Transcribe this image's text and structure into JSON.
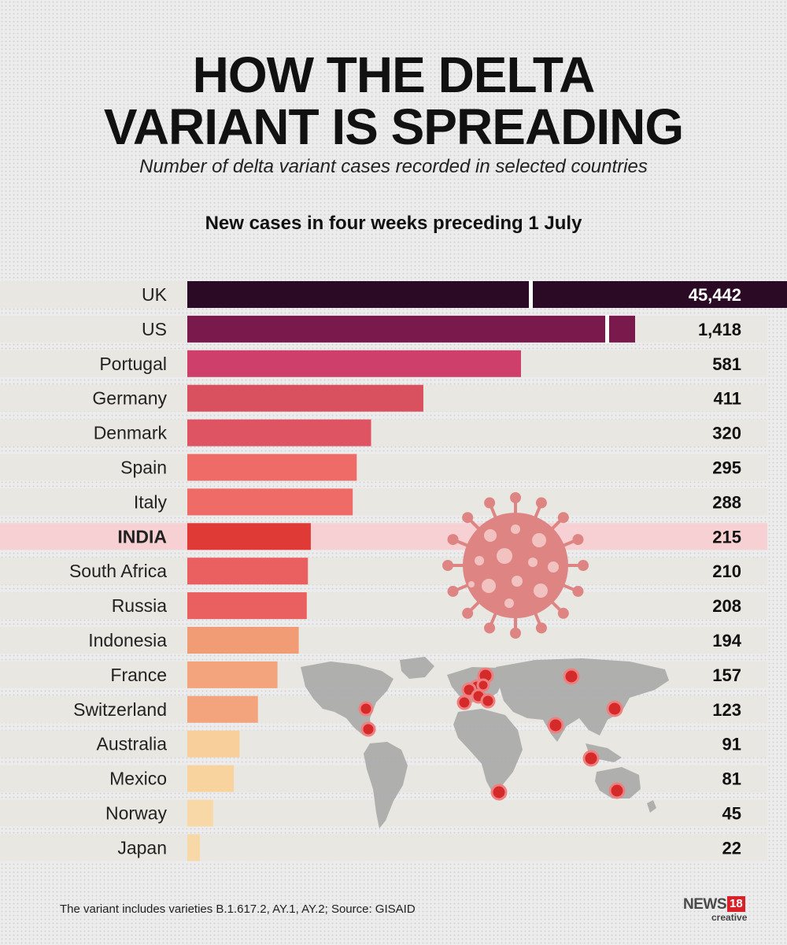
{
  "header": {
    "title_line1": "HOW THE DELTA",
    "title_line2": "VARIANT IS SPREADING",
    "subtitle": "Number of delta variant cases recorded in selected countries",
    "chart_heading": "New cases in four weeks preceding 1 July"
  },
  "footer": {
    "note": "The variant includes varieties B.1.617.2, AY.1, AY.2;  Source: GISAID",
    "logo_news": "NEWS",
    "logo_num": "18",
    "logo_sub": "creative"
  },
  "chart_data": {
    "type": "bar",
    "orientation": "horizontal",
    "title": "New cases in four weeks preceding 1 July",
    "categories": [
      "UK",
      "US",
      "Portugal",
      "Germany",
      "Denmark",
      "Spain",
      "Italy",
      "INDIA",
      "South Africa",
      "Russia",
      "Indonesia",
      "France",
      "Switzerland",
      "Australia",
      "Mexico",
      "Norway",
      "Japan"
    ],
    "values": [
      45442,
      1418,
      581,
      411,
      320,
      295,
      288,
      215,
      210,
      208,
      194,
      157,
      123,
      91,
      81,
      45,
      22
    ],
    "value_labels": [
      "45,442",
      "1,418",
      "581",
      "411",
      "320",
      "295",
      "288",
      "215",
      "210",
      "208",
      "194",
      "157",
      "123",
      "91",
      "81",
      "45",
      "22"
    ],
    "highlight": "INDIA",
    "axis_breaks": [
      "UK",
      "US"
    ],
    "bar_colors": [
      "#2b0a25",
      "#7a1a4c",
      "#cf3f6c",
      "#d9505f",
      "#df5462",
      "#ee6b68",
      "#ee6b68",
      "#e03a36",
      "#ea5f5f",
      "#ea5f5f",
      "#f19c75",
      "#f4a47c",
      "#f4a47c",
      "#f8cf9a",
      "#f8d39e",
      "#f8d8a6",
      "#f8d8a6"
    ],
    "highlight_track_color": "#f6d0d3",
    "track_color": "#e9e7e1",
    "xlabel": "",
    "ylabel": ""
  }
}
